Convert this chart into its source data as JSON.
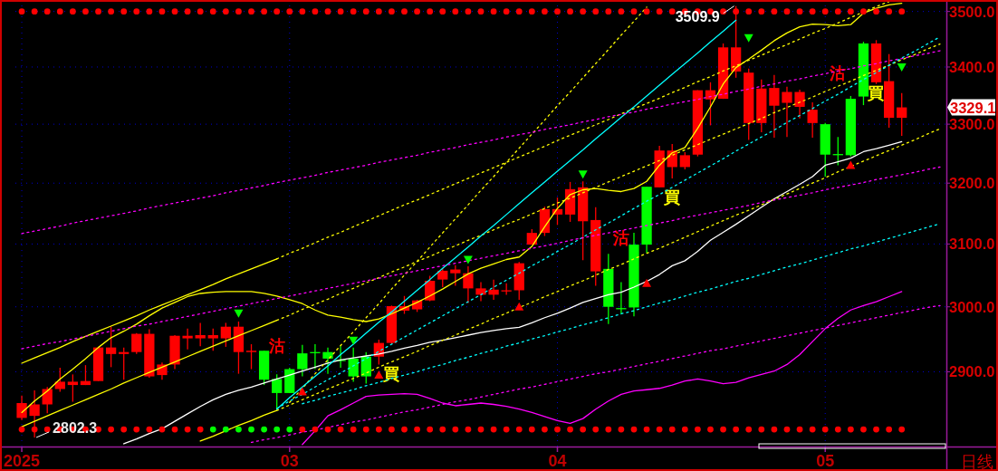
{
  "chart_data": {
    "type": "candlestick",
    "log": true,
    "grid": true,
    "categories": [
      "2025",
      null,
      null,
      null,
      null,
      null,
      null,
      null,
      null,
      null,
      null,
      null,
      null,
      null,
      null,
      null,
      null,
      null,
      null,
      null,
      null,
      "03",
      null,
      null,
      null,
      null,
      null,
      null,
      null,
      null,
      null,
      null,
      null,
      null,
      null,
      null,
      null,
      null,
      null,
      null,
      null,
      null,
      "04",
      null,
      null,
      null,
      null,
      null,
      null,
      null,
      null,
      null,
      null,
      null,
      null,
      null,
      null,
      null,
      null,
      null,
      null,
      null,
      null,
      "05",
      null,
      null,
      null,
      null,
      null,
      null,
      null,
      null,
      null
    ],
    "ohlc": [
      [
        2831,
        2864,
        2828,
        2853
      ],
      [
        2834,
        2872,
        2802.3,
        2851
      ],
      [
        2851,
        2877,
        2838,
        2874
      ],
      [
        2874,
        2906,
        2870,
        2885
      ],
      [
        2880,
        2896,
        2855,
        2885
      ],
      [
        2880,
        2910,
        2880,
        2886
      ],
      [
        2886,
        2938,
        2886,
        2937
      ],
      [
        2927,
        2969,
        2907,
        2937
      ],
      [
        2927,
        2937,
        2888,
        2930
      ],
      [
        2930,
        2959,
        2927,
        2958
      ],
      [
        2893,
        2965,
        2891,
        2958
      ],
      [
        2895,
        2914,
        2888,
        2911
      ],
      [
        2911,
        2956,
        2904,
        2955
      ],
      [
        2951,
        2966,
        2934,
        2955
      ],
      [
        2951,
        2975,
        2939,
        2956
      ],
      [
        2951,
        2966,
        2932,
        2956
      ],
      [
        2951,
        2975,
        2938,
        2969
      ],
      [
        2930,
        2977,
        2897,
        2969
      ],
      [
        2930,
        2942,
        2904,
        2932
      ],
      [
        2932,
        2932,
        2880,
        2888
      ],
      [
        2889,
        2896,
        2843,
        2868
      ],
      [
        2904,
        2906,
        2868,
        2868
      ],
      [
        2928,
        2941,
        2893,
        2904
      ],
      [
        2930,
        2942,
        2904,
        2929
      ],
      [
        2930,
        2937,
        2897,
        2920
      ],
      [
        2918,
        2939,
        2906,
        2917
      ],
      [
        2920,
        2937,
        2885,
        2893
      ],
      [
        2923,
        2930,
        2882,
        2893
      ],
      [
        2923,
        2949,
        2911,
        2944
      ],
      [
        2944,
        3002,
        2942,
        3001
      ],
      [
        2994,
        3017,
        2989,
        3001
      ],
      [
        2996,
        3011,
        2992,
        3010
      ],
      [
        3010,
        3049,
        3009,
        3041
      ],
      [
        3043,
        3061,
        3031,
        3057
      ],
      [
        3053,
        3066,
        3033,
        3059
      ],
      [
        3029,
        3064,
        3006,
        3053
      ],
      [
        3019,
        3039,
        3009,
        3029
      ],
      [
        3019,
        3043,
        3011,
        3027
      ],
      [
        3025,
        3037,
        3019,
        3026
      ],
      [
        3026,
        3071,
        3011,
        3069
      ],
      [
        3099,
        3124,
        3099,
        3118
      ],
      [
        3118,
        3161,
        3113,
        3157
      ],
      [
        3148,
        3176,
        3131,
        3157
      ],
      [
        3148,
        3202,
        3136,
        3190
      ],
      [
        3137,
        3203,
        3074,
        3193
      ],
      [
        3056,
        3160,
        3033,
        3139
      ],
      [
        3060,
        3084,
        2973,
        3000
      ],
      [
        2998,
        3039,
        2989,
        2997
      ],
      [
        3099,
        3118,
        2985,
        2999
      ],
      [
        3194,
        3194,
        3086,
        3099
      ],
      [
        3193,
        3263,
        3193,
        3255
      ],
      [
        3227,
        3266,
        3208,
        3255
      ],
      [
        3227,
        3252,
        3223,
        3247
      ],
      [
        3248,
        3359,
        3245,
        3359
      ],
      [
        3343,
        3373,
        3298,
        3359
      ],
      [
        3344,
        3442,
        3344,
        3435
      ],
      [
        3392,
        3509.9,
        3381,
        3435
      ],
      [
        3302,
        3397,
        3273,
        3390
      ],
      [
        3302,
        3378,
        3286,
        3362
      ],
      [
        3332,
        3386,
        3277,
        3363
      ],
      [
        3337,
        3365,
        3278,
        3356
      ],
      [
        3330,
        3360,
        3310,
        3356
      ],
      [
        3302,
        3338,
        3277,
        3325
      ],
      [
        3300,
        3302,
        3211,
        3248
      ],
      [
        3249,
        3278,
        3230,
        3248
      ],
      [
        3344,
        3349,
        3245,
        3247
      ],
      [
        3442,
        3445,
        3333,
        3348
      ],
      [
        3373,
        3448,
        3370,
        3442
      ],
      [
        3311,
        3423,
        3294,
        3375
      ],
      [
        3311,
        3354,
        3280,
        3329.1
      ],
      null,
      null,
      null
    ],
    "colors": [
      "#ff0000",
      "#ff0000",
      "#ff0000",
      "#ff0000",
      "#ff0000",
      "#ff0000",
      "#ff0000",
      "#ff0000",
      "#ff0000",
      "#ff0000",
      "#ff0000",
      "#ff0000",
      "#ff0000",
      "#ff0000",
      "#ff0000",
      "#ff0000",
      "#ff0000",
      "#ff0000",
      "#ff0000",
      "#00ff00",
      "#00ff00",
      "#00ff00",
      "#00ff00",
      "#00ff00",
      "#00ff00",
      "#00ff00",
      "#00ff00",
      "#00ff00",
      "#ff0000",
      "#ff0000",
      "#ff0000",
      "#ff0000",
      "#ff0000",
      "#ff0000",
      "#ff0000",
      "#ff0000",
      "#ff0000",
      "#ff0000",
      "#ff0000",
      "#ff0000",
      "#ff0000",
      "#ff0000",
      "#ff0000",
      "#ff0000",
      "#ff0000",
      "#ff0000",
      "#00ff00",
      "#00ff00",
      "#00ff00",
      "#00ff00",
      "#ff0000",
      "#ff0000",
      "#ff0000",
      "#ff0000",
      "#ff0000",
      "#ff0000",
      "#ff0000",
      "#ff0000",
      "#ff0000",
      "#ff0000",
      "#ff0000",
      "#ff0000",
      "#ff0000",
      "#00ff00",
      "#00ff00",
      "#00ff00",
      "#00ff00",
      "#ff0000",
      "#ff0000",
      "#ff0000",
      null,
      null,
      null
    ],
    "ylim": [
      2789,
      3521
    ],
    "yticks": [
      {
        "value": 2900,
        "label": "2900.0"
      },
      {
        "value": 3000,
        "label": "3000.0"
      },
      {
        "value": 3100,
        "label": "3100.0"
      },
      {
        "value": 3200,
        "label": "3200.0"
      },
      {
        "value": 3300,
        "label": "3300.0"
      },
      {
        "value": 3400,
        "label": "3400.0"
      },
      {
        "value": 3500,
        "label": "3500.0"
      }
    ],
    "series": [
      {
        "type": "line",
        "color": "#ffff00",
        "line_style": "solid",
        "values": [
          2839,
          2856,
          2871,
          2889,
          2904,
          2920,
          2937,
          2952,
          2962,
          2973,
          2986,
          2998,
          3007,
          3016,
          3021,
          3023,
          3024,
          3024,
          3024,
          3021,
          3017,
          3011,
          3005,
          2995,
          2987,
          2984,
          2980,
          2977,
          2981,
          2989,
          2998,
          3007,
          3017,
          3028,
          3040,
          3052,
          3061,
          3068,
          3075,
          3079,
          3096,
          3128,
          3158,
          3181,
          3189,
          3191,
          3188,
          3186,
          3191,
          3203,
          3230,
          3251,
          3260,
          3293,
          3330,
          3370,
          3399,
          3414,
          3430,
          3447,
          3461,
          3472,
          3477,
          3476,
          3474,
          3476,
          3497,
          3506,
          3512,
          3515,
          null,
          null,
          null
        ]
      },
      {
        "type": "line",
        "color": "#ffffff",
        "line_style": "solid",
        "values": [
          null,
          null,
          null,
          null,
          null,
          null,
          null,
          null,
          2793,
          2800,
          2808,
          2815,
          2826,
          2837,
          2848,
          2858,
          2866,
          2872,
          2877,
          2883,
          2889,
          2895,
          2901,
          2907,
          2913,
          2918,
          2921,
          2924,
          2927,
          2931,
          2936,
          2940,
          2945,
          2948,
          2952,
          2956,
          2960,
          2963,
          2966,
          2968,
          2975,
          2983,
          2990,
          2998,
          3007,
          3013,
          3019,
          3023,
          3031,
          3040,
          3051,
          3065,
          3073,
          3088,
          3106,
          3119,
          3132,
          3146,
          3160,
          3174,
          3186,
          3198,
          3211,
          3230,
          3236,
          3242,
          3253,
          3258,
          3264,
          3270,
          null,
          null,
          null
        ]
      },
      {
        "type": "line",
        "color": "#ff00ff",
        "line_style": "solid",
        "values": [
          null,
          null,
          null,
          null,
          null,
          null,
          null,
          null,
          null,
          null,
          null,
          null,
          null,
          null,
          null,
          null,
          null,
          null,
          null,
          null,
          null,
          null,
          2792,
          2812,
          2834,
          2843,
          2853,
          2863,
          2865,
          2866,
          2867,
          2866,
          2860,
          2853,
          2849,
          2851,
          2853,
          2851,
          2848,
          2844,
          2839,
          2833,
          2827,
          2823,
          2830,
          2844,
          2856,
          2866,
          2871,
          2873,
          2875,
          2880,
          2886,
          2889,
          2886,
          2882,
          2884,
          2891,
          2896,
          2901,
          2911,
          2926,
          2946,
          2966,
          2982,
          2995,
          3002,
          3008,
          3016,
          3024,
          null,
          null,
          null
        ]
      },
      {
        "type": "line",
        "color": "#ffff00",
        "line_style": "solid",
        "values": [
          2913,
          2921,
          2929,
          2937,
          2946,
          2954,
          2962,
          2970,
          2978,
          2986,
          2995,
          3003,
          3011,
          3019,
          3027,
          3035,
          3044,
          3052,
          3060,
          3068,
          3076,
          null,
          null,
          null,
          null,
          null,
          null,
          null,
          null,
          null,
          null,
          null,
          null,
          null,
          null,
          null,
          null,
          null,
          null,
          null,
          null,
          null,
          null,
          null,
          null,
          null,
          null,
          null,
          null,
          null,
          null,
          null,
          null,
          null,
          null,
          null,
          null,
          null,
          null,
          null,
          null,
          null,
          null,
          null,
          null,
          null,
          null,
          null,
          null,
          null,
          null,
          null,
          null
        ]
      },
      {
        "type": "line",
        "color": "#ffff00",
        "line_style": "solid",
        "values": [
          2818,
          2826,
          2834,
          2842,
          2850,
          2858,
          2866,
          2874,
          2883,
          2891,
          2899,
          2907,
          2915,
          2923,
          2931,
          2939,
          2947,
          2955,
          2963,
          2971,
          2979,
          null,
          null,
          null,
          null,
          null,
          null,
          null,
          null,
          null,
          null,
          null,
          null,
          null,
          null,
          null,
          null,
          null,
          null,
          null,
          null,
          null,
          null,
          null,
          null,
          null,
          null,
          null,
          null,
          null,
          null,
          null,
          null,
          null,
          null,
          null,
          null,
          null,
          null,
          null,
          null,
          null,
          null,
          null,
          null,
          null,
          null,
          null,
          null,
          null,
          null,
          null,
          null
        ]
      },
      {
        "type": "line",
        "color": "#ffff00",
        "line_style": "solid",
        "values": [
          null,
          null,
          null,
          null,
          null,
          null,
          null,
          null,
          null,
          null,
          null,
          null,
          null,
          null,
          2797,
          2804,
          2812,
          2820,
          2827,
          2835,
          2842,
          null,
          null,
          null,
          null,
          null,
          null,
          null,
          null,
          null,
          null,
          null,
          null,
          null,
          null,
          null,
          null,
          null,
          null,
          null,
          null,
          null,
          null,
          null,
          null,
          null,
          null,
          null,
          null,
          null,
          null,
          null,
          null,
          null,
          null,
          null,
          null,
          null,
          null,
          null,
          null,
          null,
          null,
          null,
          null,
          null,
          null,
          null,
          null,
          null,
          null,
          null,
          null
        ]
      },
      {
        "type": "line",
        "color": "#ffff00",
        "line_style": "dotted",
        "values": [
          null,
          null,
          null,
          null,
          null,
          null,
          null,
          null,
          null,
          null,
          null,
          null,
          null,
          null,
          null,
          null,
          null,
          null,
          null,
          null,
          2842,
          2850,
          2858,
          2866,
          2874,
          2882,
          2890,
          2898,
          2907,
          2915,
          2923,
          2931,
          2940,
          2948,
          2956,
          2965,
          2973,
          2982,
          2990,
          2999,
          3007,
          3016,
          3024,
          3033,
          3041,
          3050,
          3059,
          3067,
          3076,
          3085,
          3093,
          3102,
          3111,
          3120,
          3129,
          3138,
          3147,
          3155,
          3164,
          3173,
          3182,
          3191,
          3200,
          3209,
          3219,
          3228,
          3237,
          3246,
          3255,
          3264,
          3273,
          3283,
          3292
        ]
      },
      {
        "type": "line",
        "color": "#ffff00",
        "line_style": "dotted",
        "values": [
          null,
          null,
          null,
          null,
          null,
          null,
          null,
          null,
          null,
          null,
          null,
          null,
          null,
          null,
          null,
          null,
          null,
          null,
          null,
          null,
          2979,
          2987,
          2996,
          3004,
          3012,
          3021,
          3029,
          3038,
          3046,
          3055,
          3063,
          3072,
          3080,
          3089,
          3097,
          3106,
          3114,
          3123,
          3132,
          3140,
          3149,
          3158,
          3167,
          3175,
          3184,
          3193,
          3202,
          3211,
          3220,
          3229,
          3238,
          3247,
          3256,
          3265,
          3274,
          3283,
          3292,
          3301,
          3310,
          3320,
          3329,
          3338,
          3347,
          3357,
          3366,
          3375,
          3385,
          3394,
          3403,
          3413,
          3422,
          3432,
          3441
        ]
      },
      {
        "type": "line",
        "color": "#ffff00",
        "line_style": "dotted",
        "values": [
          null,
          null,
          null,
          null,
          null,
          null,
          null,
          null,
          null,
          null,
          null,
          null,
          null,
          null,
          null,
          null,
          null,
          null,
          null,
          null,
          null,
          2854,
          2875,
          2897,
          2918,
          2940,
          2961,
          2983,
          3005,
          3028,
          3050,
          3072,
          3095,
          3118,
          3141,
          3164,
          3188,
          3211,
          3235,
          3259,
          3283,
          3307,
          3332,
          3356,
          3381,
          3406,
          3431,
          3457,
          3482,
          3508,
          null,
          null,
          null,
          null,
          null,
          null,
          null,
          null,
          null,
          null,
          null,
          null,
          null,
          null,
          null,
          null,
          null,
          null,
          null,
          null,
          null,
          null,
          null
        ]
      },
      {
        "type": "line",
        "color": "#ffff00",
        "line_style": "dotted",
        "values": [
          null,
          null,
          null,
          null,
          null,
          null,
          null,
          null,
          null,
          null,
          null,
          null,
          null,
          null,
          null,
          null,
          null,
          null,
          null,
          null,
          3076,
          3085,
          3093,
          3102,
          3111,
          3119,
          3128,
          3137,
          3146,
          3155,
          3164,
          3172,
          3181,
          3190,
          3199,
          3208,
          3217,
          3226,
          3235,
          3244,
          3253,
          3262,
          3272,
          3281,
          3290,
          3299,
          3308,
          3318,
          3327,
          3336,
          3345,
          3355,
          3364,
          3374,
          3383,
          3393,
          3402,
          3412,
          3421,
          3431,
          3440,
          3450,
          3460,
          3469,
          3479,
          3489,
          3499,
          3509,
          3518,
          null,
          null,
          null,
          null
        ]
      },
      {
        "type": "line",
        "color": "#00ffff",
        "line_style": "solid",
        "values": [
          null,
          null,
          null,
          null,
          null,
          null,
          null,
          null,
          null,
          null,
          null,
          null,
          null,
          null,
          null,
          null,
          null,
          null,
          null,
          null,
          2844,
          2861,
          2877,
          2893,
          2909,
          2926,
          2942,
          2959,
          2976,
          2992,
          3009,
          3026,
          3043,
          3061,
          3078,
          3095,
          3113,
          3130,
          3148,
          3166,
          3184,
          3202,
          3220,
          3238,
          3256,
          3275,
          3293,
          3312,
          3330,
          3349,
          3368,
          3387,
          3406,
          3425,
          3445,
          3464,
          3484,
          null,
          null,
          null,
          null,
          null,
          null,
          null,
          null,
          null,
          null,
          null,
          null,
          null,
          null,
          null,
          null
        ]
      },
      {
        "type": "line",
        "color": "#00ffff",
        "line_style": "dotted",
        "values": [
          null,
          null,
          null,
          null,
          null,
          null,
          null,
          null,
          null,
          null,
          null,
          null,
          null,
          null,
          null,
          null,
          null,
          null,
          null,
          null,
          2845,
          2856,
          2866,
          2877,
          2888,
          2898,
          2909,
          2920,
          2931,
          2942,
          2953,
          2964,
          2975,
          2986,
          2997,
          3008,
          3019,
          3031,
          3042,
          3053,
          3065,
          3076,
          3088,
          3099,
          3111,
          3123,
          3134,
          3146,
          3158,
          3170,
          3181,
          3193,
          3205,
          3217,
          3229,
          3241,
          3254,
          3266,
          3278,
          3290,
          3303,
          3315,
          3327,
          3340,
          3352,
          3365,
          3378,
          3390,
          3403,
          3416,
          3428,
          3441,
          3454
        ]
      },
      {
        "type": "line",
        "color": "#00ffff",
        "line_style": "dotted",
        "values": [
          null,
          null,
          null,
          null,
          null,
          null,
          null,
          null,
          null,
          null,
          null,
          null,
          null,
          null,
          null,
          null,
          null,
          null,
          null,
          null,
          null,
          null,
          2852,
          2857,
          2863,
          2868,
          2873,
          2879,
          2884,
          2890,
          2895,
          2900,
          2906,
          2911,
          2917,
          2922,
          2928,
          2933,
          2939,
          2944,
          2950,
          2955,
          2961,
          2966,
          2972,
          2977,
          2983,
          2989,
          2994,
          3000,
          3006,
          3011,
          3017,
          3023,
          3028,
          3034,
          3040,
          3045,
          3051,
          3057,
          3063,
          3068,
          3074,
          3080,
          3086,
          3092,
          3097,
          3103,
          3109,
          3115,
          3121,
          3127,
          3133
        ]
      },
      {
        "type": "line",
        "color": "#ff00ff",
        "line_style": "dotted",
        "values": [
          3117,
          3121,
          3125,
          3129,
          3134,
          3138,
          3142,
          3146,
          3150,
          3154,
          3159,
          3163,
          3167,
          3171,
          3175,
          3179,
          3184,
          3188,
          3192,
          3196,
          3201,
          3205,
          3209,
          3213,
          3218,
          3222,
          3226,
          3230,
          3235,
          3239,
          3243,
          3247,
          3252,
          3256,
          3260,
          3265,
          3269,
          3273,
          3278,
          3282,
          3286,
          3291,
          3295,
          3299,
          3304,
          3308,
          3313,
          3317,
          3321,
          3326,
          3330,
          3335,
          3339,
          3343,
          3348,
          3352,
          3357,
          3361,
          3366,
          3370,
          3375,
          3379,
          3384,
          3388,
          3393,
          3397,
          3402,
          3406,
          3411,
          3415,
          3420,
          3424,
          3429
        ]
      },
      {
        "type": "line",
        "color": "#ff00ff",
        "line_style": "dotted",
        "values": [
          2935,
          2939,
          2943,
          2946,
          2950,
          2954,
          2958,
          2962,
          2966,
          2970,
          2973,
          2977,
          2981,
          2985,
          2989,
          2993,
          2997,
          3001,
          3005,
          3009,
          3013,
          3017,
          3021,
          3025,
          3029,
          3033,
          3037,
          3041,
          3045,
          3049,
          3053,
          3057,
          3061,
          3065,
          3069,
          3073,
          3077,
          3081,
          3085,
          3089,
          3093,
          3097,
          3101,
          3106,
          3110,
          3114,
          3118,
          3122,
          3126,
          3130,
          3134,
          3138,
          3143,
          3147,
          3151,
          3155,
          3159,
          3163,
          3168,
          3172,
          3176,
          3180,
          3184,
          3189,
          3193,
          3197,
          3201,
          3206,
          3210,
          3214,
          3218,
          3223,
          3227
        ]
      },
      {
        "type": "line",
        "color": "#ff00ff",
        "line_style": "dotted",
        "values": [
          null,
          null,
          null,
          null,
          null,
          null,
          null,
          null,
          null,
          null,
          null,
          null,
          null,
          null,
          null,
          null,
          null,
          null,
          2795,
          2799,
          2802,
          2806,
          2810,
          2813,
          2817,
          2821,
          2825,
          2828,
          2832,
          2836,
          2840,
          2843,
          2847,
          2851,
          2855,
          2858,
          2862,
          2866,
          2870,
          2874,
          2877,
          2881,
          2885,
          2889,
          2893,
          2897,
          2900,
          2904,
          2908,
          2912,
          2916,
          2920,
          2924,
          2928,
          2932,
          2935,
          2939,
          2943,
          2947,
          2951,
          2955,
          2959,
          2963,
          2967,
          2971,
          2975,
          2979,
          2983,
          2987,
          2991,
          2995,
          2999,
          3002
        ]
      },
      {
        "type": "scatter",
        "marker": "circle",
        "color": "#ff0000",
        "values": [
          3500,
          3500,
          3500,
          3500,
          3500,
          3500,
          3500,
          3500,
          3500,
          3500,
          3500,
          3500,
          3500,
          3500,
          3500,
          3500,
          3500,
          3500,
          3500,
          3500,
          3500,
          3500,
          3500,
          3500,
          3500,
          3500,
          3500,
          3500,
          3500,
          3500,
          3500,
          3500,
          3500,
          3500,
          3500,
          3500,
          3500,
          3500,
          3500,
          3500,
          3500,
          3500,
          3500,
          3500,
          3500,
          3500,
          3500,
          3500,
          3500,
          3500,
          3500,
          3500,
          3500,
          3500,
          3500,
          3500,
          3500,
          3500,
          3500,
          3500,
          3500,
          3500,
          3500,
          3500,
          3500,
          3500,
          3500,
          3500,
          3500,
          3500,
          null,
          null,
          null
        ]
      },
      {
        "type": "scatter",
        "marker": "circle",
        "colors": [
          "#ff0000",
          "#ff0000",
          "#ff0000",
          "#ff0000",
          "#ff0000",
          "#ff0000",
          "#ff0000",
          "#ff0000",
          "#ff0000",
          "#ff0000",
          "#ff0000",
          "#ff0000",
          "#ff0000",
          "#ff0000",
          "#ff0000",
          "#00ff00",
          "#00ff00",
          "#00ff00",
          "#00ff00",
          "#00ff00",
          "#00ff00",
          "#00ff00",
          "#ff0000",
          "#ff0000",
          "#ff0000",
          "#ff0000",
          "#ff0000",
          "#ff0000",
          "#ff0000",
          "#ff0000",
          "#ff0000",
          "#ff0000",
          "#ff0000",
          "#ff0000",
          "#ff0000",
          "#ff0000",
          "#ff0000",
          "#ff0000",
          "#ff0000",
          "#ff0000",
          "#ff0000",
          "#ff0000",
          "#ff0000",
          "#ff0000",
          "#ff0000",
          "#ff0000",
          "#ff0000",
          "#ff0000",
          "#ff0000",
          "#ff0000",
          "#ff0000",
          "#ff0000",
          "#ff0000",
          "#ff0000",
          "#ff0000",
          "#ff0000",
          "#ff0000",
          "#ff0000",
          "#ff0000",
          "#ff0000",
          "#ff0000",
          "#ff0000",
          "#ff0000",
          "#ff0000",
          "#ff0000",
          "#ff0000",
          "#ff0000",
          "#ff0000",
          "#ff0000",
          "#ff0000",
          null,
          null,
          null
        ],
        "values": [
          2814,
          2814,
          2814,
          2814,
          2814,
          2814,
          2814,
          2814,
          2814,
          2814,
          2814,
          2814,
          2814,
          2814,
          2814,
          2814,
          2814,
          2814,
          2814,
          2814,
          2814,
          2814,
          2814,
          2814,
          2814,
          2814,
          2814,
          2814,
          2814,
          2814,
          2814,
          2814,
          2814,
          2814,
          2814,
          2814,
          2814,
          2814,
          2814,
          2814,
          2814,
          2814,
          2814,
          2814,
          2814,
          2814,
          2814,
          2814,
          2814,
          2814,
          2814,
          2814,
          2814,
          2814,
          2814,
          2814,
          2814,
          2814,
          2814,
          2814,
          2814,
          2814,
          2814,
          2814,
          2814,
          2814,
          2814,
          2814,
          2814,
          2814,
          null,
          null,
          null
        ]
      },
      {
        "type": "scatter",
        "marker": "triangle",
        "color": "#00ff00",
        "values": [
          null,
          null,
          null,
          null,
          null,
          null,
          null,
          null,
          null,
          null,
          null,
          null,
          null,
          null,
          null,
          null,
          null,
          2990,
          null,
          null,
          null,
          null,
          null,
          null,
          null,
          null,
          2948,
          null,
          null,
          null,
          null,
          null,
          null,
          null,
          null,
          3075,
          null,
          null,
          null,
          null,
          null,
          null,
          null,
          null,
          3215,
          null,
          null,
          null,
          null,
          null,
          null,
          null,
          null,
          null,
          null,
          null,
          null,
          3452,
          null,
          null,
          null,
          null,
          null,
          null,
          null,
          null,
          null,
          null,
          null,
          3400,
          null,
          null,
          null
        ]
      },
      {
        "type": "scatter",
        "marker": "triangle",
        "color": "#ff0000",
        "values": [
          null,
          null,
          null,
          null,
          null,
          null,
          null,
          null,
          null,
          null,
          null,
          null,
          null,
          null,
          null,
          null,
          null,
          null,
          null,
          null,
          null,
          null,
          2870,
          null,
          null,
          null,
          null,
          null,
          2895,
          null,
          null,
          null,
          null,
          null,
          null,
          null,
          null,
          null,
          null,
          3000,
          null,
          null,
          null,
          null,
          null,
          null,
          null,
          null,
          null,
          3037,
          null,
          null,
          null,
          null,
          null,
          null,
          null,
          null,
          null,
          null,
          null,
          null,
          null,
          null,
          null,
          3230,
          null,
          null,
          null,
          null,
          null,
          null,
          null
        ]
      }
    ],
    "annotations": [
      {
        "text": "3509.9",
        "y": 3509.9
      },
      "2802.3",
      "3329.1",
      "日线",
      "沽",
      "買",
      "沽",
      "買",
      "沽",
      "買"
    ]
  }
}
